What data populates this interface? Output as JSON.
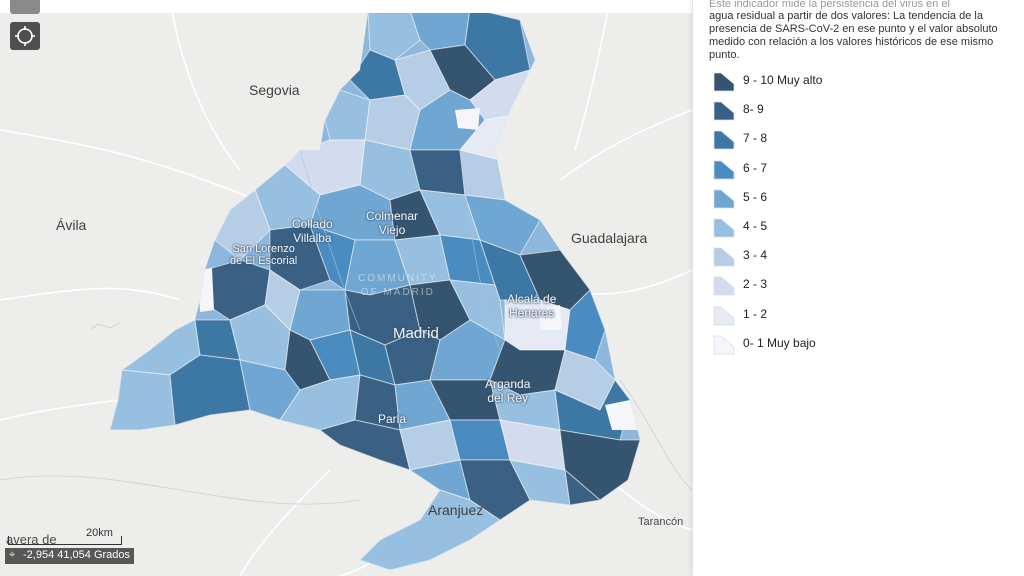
{
  "map": {
    "places": {
      "segovia": "Segovia",
      "avila": "Ávila",
      "guadalajara": "Guadalajara",
      "collado_villalba": "Collado\nVillalba",
      "colmenar_viejo": "Colmenar\nViejo",
      "san_lorenzo": "San Lorenzo\nde El Escorial",
      "community": "COMMUNITY\nOF MADRID",
      "madrid": "Madrid",
      "alcala": "Alcalá de\nHenares",
      "arganda": "Arganda\ndel Rey",
      "parla": "Parla",
      "aranjuez": "Aranjuez",
      "tarancon": "Tarancón",
      "partial_town": "avera de"
    },
    "scale_label": "20km",
    "coordinates": "-2,954 41,054 Grados",
    "locate_icon": "crosshair-icon",
    "home_icon": "home-icon"
  },
  "legend": {
    "description_cut": "Este indicador mide la persistencia del virus en el",
    "description": "agua residual a partir de dos valores: La tendencia de la presencia de SARS-CoV-2 en ese punto y el valor absoluto medido con relación a los valores históricos de ese mismo punto.",
    "items": [
      {
        "label": "9 - 10 Muy alto",
        "color": "#34546f"
      },
      {
        "label": "8- 9",
        "color": "#3a6184"
      },
      {
        "label": "7 - 8",
        "color": "#3d78a5"
      },
      {
        "label": "6 - 7",
        "color": "#4a8bc0"
      },
      {
        "label": "5 - 6",
        "color": "#6fa6d2"
      },
      {
        "label": "4 - 5",
        "color": "#97bfdf"
      },
      {
        "label": "3 - 4",
        "color": "#b6cde6"
      },
      {
        "label": "2 - 3",
        "color": "#d3dcee"
      },
      {
        "label": "1 - 2",
        "color": "#e6eaf5"
      },
      {
        "label": "0- 1 Muy bajo",
        "color": "#f5f5fa"
      }
    ]
  }
}
